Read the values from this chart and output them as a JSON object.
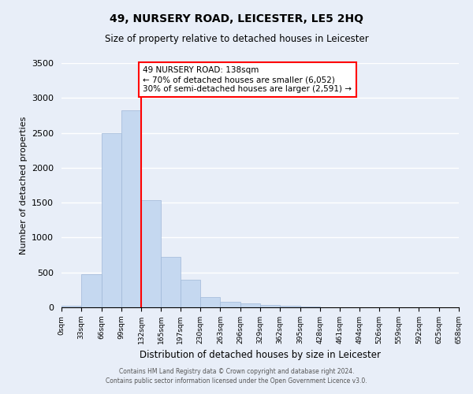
{
  "title": "49, NURSERY ROAD, LEICESTER, LE5 2HQ",
  "subtitle": "Size of property relative to detached houses in Leicester",
  "xlabel": "Distribution of detached houses by size in Leicester",
  "ylabel": "Number of detached properties",
  "bar_color": "#c5d8f0",
  "bar_edge_color": "#a0b8d8",
  "background_color": "#e8eef8",
  "grid_color": "#ffffff",
  "bin_edges": [
    0,
    33,
    66,
    99,
    132,
    165,
    197,
    230,
    263,
    296,
    329,
    362,
    395,
    428,
    461,
    494,
    526,
    559,
    592,
    625,
    658
  ],
  "bar_heights": [
    20,
    470,
    2500,
    2820,
    1530,
    720,
    390,
    150,
    75,
    55,
    30,
    20,
    10,
    0,
    0,
    0,
    0,
    0,
    0,
    0
  ],
  "red_line_x": 132,
  "annotation_title": "49 NURSERY ROAD: 138sqm",
  "annotation_line1": "← 70% of detached houses are smaller (6,052)",
  "annotation_line2": "30% of semi-detached houses are larger (2,591) →",
  "ylim": [
    0,
    3500
  ],
  "yticks": [
    0,
    500,
    1000,
    1500,
    2000,
    2500,
    3000,
    3500
  ],
  "footer_line1": "Contains HM Land Registry data © Crown copyright and database right 2024.",
  "footer_line2": "Contains public sector information licensed under the Open Government Licence v3.0."
}
